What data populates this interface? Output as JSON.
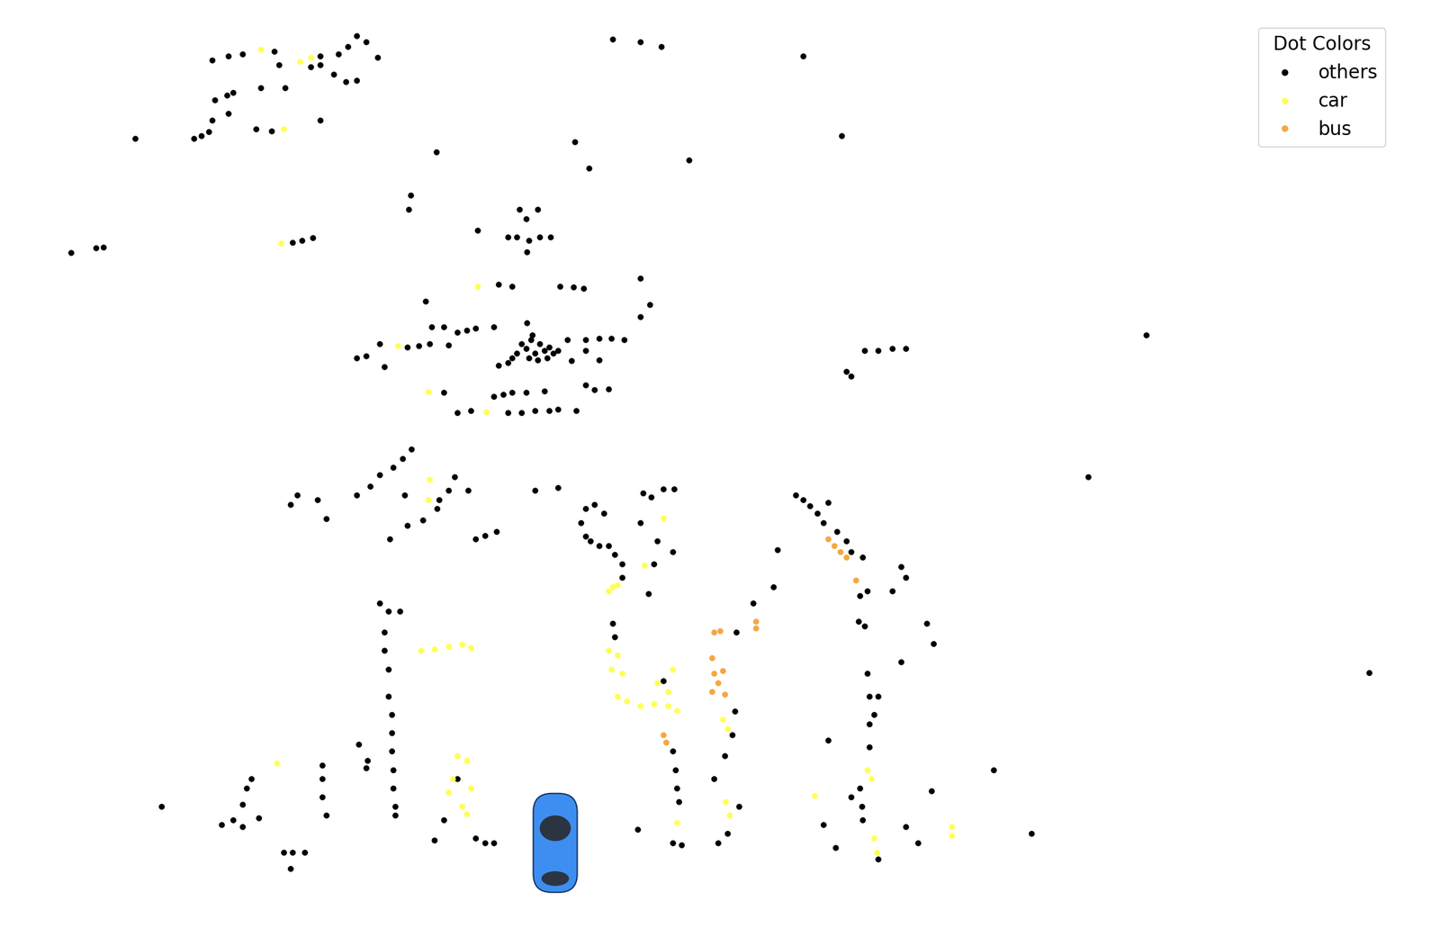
{
  "chart_data": {
    "type": "scatter",
    "legend_title": "Dot Colors",
    "legend": "upper right",
    "tick_labels": false,
    "grid": false,
    "series": [
      {
        "name": "others",
        "color": "#000000",
        "marker": "o",
        "x": [
          -37.5,
          -35.7,
          -34.2,
          -30.7,
          -25.7,
          -23.7,
          -21.7,
          -20.7,
          -19.4,
          -22.7,
          -26.7,
          -25.7,
          -24.2,
          -22.9,
          -21.7,
          -30.2,
          -29.5,
          -32.2,
          -35.2,
          -35.9,
          -37.2,
          -37.5,
          -35.7,
          -32.7,
          -31.0,
          -39.5,
          -38.7,
          -37.9,
          -25.7,
          -45.9,
          6.3,
          9.3,
          11.6,
          27.1,
          31.3,
          14.6,
          2.1,
          3.7,
          -13.0,
          -15.8,
          -16.0,
          -52.9,
          -50.2,
          -49.4,
          -28.7,
          -27.7,
          -26.5,
          -3.9,
          -1.9,
          -3.2,
          -5.2,
          -4.2,
          -2.9,
          -1.7,
          -0.5,
          -3.1,
          -8.5,
          -6.2,
          -4.7,
          0.5,
          2.0,
          3.1,
          9.3,
          10.3,
          9.3,
          -14.2,
          -3.7,
          -3.2,
          -2.7,
          -2.2,
          -1.7,
          -1.2,
          -0.7,
          -0.2,
          -4.2,
          -2.9,
          -1.9,
          -0.9,
          0.3,
          -2.5,
          -4.7,
          -5.2,
          -6.2,
          -3.1,
          -10.7,
          -9.7,
          -8.7,
          -6.7,
          -13.5,
          -12.2,
          1.3,
          3.3,
          4.8,
          6.1,
          7.5,
          3.3,
          1.8,
          4.8,
          -21.7,
          -20.7,
          -19.2,
          -16.2,
          -14.9,
          -13.7,
          -11.7,
          -18.7,
          -6.7,
          -5.7,
          -4.7,
          -3.2,
          -1.2,
          3.3,
          4.3,
          5.8,
          -12.2,
          -10.7,
          -9.2,
          -5.2,
          -3.7,
          -2.2,
          -0.7,
          0.3,
          2.3,
          33.8,
          35.3,
          36.8,
          38.3,
          31.8,
          32.3,
          64.6,
          58.2,
          88.9,
          52.0,
          47.9,
          -15.7,
          -16.7,
          -17.7,
          -19.2,
          -20.2,
          -21.7,
          -28.2,
          -28.9,
          -26.0,
          -25.0,
          -16.5,
          -12.7,
          -11.7,
          -9.5,
          -11.0,
          -18.1,
          -16.2,
          -14.5,
          -12.9,
          -8.7,
          -7.7,
          -6.4,
          -2.2,
          0.3,
          3.3,
          4.3,
          5.3,
          2.8,
          3.8,
          4.8,
          5.8,
          6.5,
          7.3,
          3.3,
          9.6,
          10.5,
          11.8,
          13.0,
          9.3,
          11.1,
          12.8,
          10.8,
          10.2,
          7.3,
          26.3,
          27.1,
          27.8,
          28.6,
          29.3,
          29.8,
          30.8,
          31.8,
          32.3,
          33.6,
          33.3,
          34.1,
          37.8,
          38.3,
          36.8,
          24.3,
          23.8,
          21.6,
          19.8,
          33.1,
          33.8,
          40.6,
          41.3,
          37.8,
          -18.7,
          -18.7,
          -18.2,
          -18.2,
          -17.9,
          -17.9,
          -17.9,
          -17.7,
          -17.7,
          -17.5,
          -17.5,
          -19.2,
          -18.2,
          -17.0,
          -25.5,
          -25.5,
          -25.5,
          -25.0,
          -21.5,
          -20.5,
          -20.7,
          -33.2,
          -33.7,
          -34.2,
          -32.4,
          -35.2,
          -34.2,
          -36.5,
          -43.0,
          -29.7,
          -28.7,
          -27.4,
          -28.9,
          -13.2,
          -12.2,
          -10.7,
          -8.7,
          -7.7,
          -6.7,
          12.8,
          13.1,
          13.3,
          13.5,
          12.8,
          13.8,
          9.0,
          11.8,
          6.3,
          6.5,
          17.8,
          18.8,
          17.3,
          18.5,
          19.3,
          19.6,
          20.1,
          29.8,
          34.1,
          34.3,
          34.8,
          35.3,
          34.3,
          34.3,
          33.3,
          33.5,
          33.6,
          32.3,
          29.3,
          30.6,
          38.3,
          39.6,
          41.1,
          35.3
        ],
        "y": [
          85.5,
          86.0,
          86.2,
          86.5,
          86.0,
          86.2,
          88.2,
          87.5,
          85.8,
          87.0,
          84.8,
          85.0,
          84.0,
          83.2,
          83.3,
          85.0,
          82.5,
          82.5,
          82.0,
          81.7,
          81.2,
          79.0,
          79.7,
          78.0,
          77.8,
          77.0,
          77.3,
          77.7,
          79.0,
          77.0,
          87.8,
          87.5,
          87.0,
          86.0,
          77.3,
          74.6,
          76.6,
          73.7,
          75.5,
          70.8,
          69.2,
          64.5,
          65.0,
          65.1,
          65.6,
          65.8,
          66.1,
          69.2,
          69.2,
          68.2,
          66.2,
          66.2,
          65.8,
          66.2,
          66.2,
          64.6,
          66.9,
          61.0,
          60.8,
          60.8,
          60.7,
          60.6,
          61.7,
          58.8,
          57.5,
          59.2,
          54.5,
          54.0,
          55.0,
          53.5,
          54.5,
          53.8,
          54.2,
          53.5,
          53.5,
          53.0,
          52.8,
          53.0,
          53.8,
          55.5,
          53.0,
          52.5,
          52.2,
          56.8,
          55.8,
          56.0,
          56.2,
          56.4,
          56.4,
          56.4,
          55.0,
          55.0,
          55.1,
          55.1,
          55.0,
          53.8,
          52.7,
          52.8,
          53.0,
          53.2,
          54.5,
          54.2,
          54.3,
          54.5,
          54.4,
          52.0,
          48.8,
          49.0,
          49.2,
          49.2,
          49.4,
          50.0,
          49.5,
          49.6,
          49.2,
          47.0,
          47.2,
          47.0,
          47.0,
          47.2,
          47.2,
          47.4,
          47.2,
          53.8,
          53.8,
          54.0,
          54.0,
          51.5,
          51.0,
          55.5,
          40.0,
          18.6,
          1.0,
          8.0,
          43.0,
          42.0,
          41.0,
          40.2,
          39.0,
          38.0,
          38.0,
          37.0,
          37.5,
          35.4,
          38.0,
          37.5,
          38.5,
          38.5,
          40.0,
          33.2,
          34.7,
          35.3,
          36.5,
          33.2,
          33.6,
          34.0,
          38.5,
          38.8,
          36.5,
          37.0,
          36.0,
          35.0,
          33.0,
          32.5,
          32.5,
          31.5,
          30.5,
          33.5,
          38.2,
          37.8,
          38.7,
          38.7,
          35.0,
          33.0,
          31.8,
          30.5,
          27.2,
          29.0,
          38.0,
          37.5,
          36.8,
          36.0,
          35.0,
          37.2,
          34.0,
          33.0,
          31.8,
          31.2,
          27.0,
          27.5,
          30.2,
          29.0,
          27.5,
          32.0,
          28.0,
          26.2,
          23.0,
          24.2,
          23.7,
          24.0,
          21.8,
          19.8,
          23.0,
          21.0,
          19.0,
          16.0,
          14.0,
          12.0,
          10.0,
          8.0,
          6.0,
          4.0,
          3.0,
          26.2,
          25.3,
          25.3,
          8.5,
          7.0,
          5.0,
          3.0,
          10.8,
          9.0,
          8.2,
          7.0,
          6.0,
          4.2,
          2.7,
          2.5,
          1.8,
          2.0,
          4.0,
          -1.0,
          -1.0,
          -1.0,
          -2.8,
          0.3,
          2.5,
          7.0,
          0.5,
          0.0,
          0.0,
          10.0,
          8.0,
          6.0,
          4.5,
          0.0,
          -0.2,
          1.5,
          17.7,
          24.0,
          22.5,
          0.0,
          1.0,
          7.0,
          9.5,
          11.8,
          14.4,
          4.0,
          11.2,
          18.5,
          16.0,
          14.0,
          16.0,
          13.0,
          10.5,
          6.0,
          4.0,
          2.5,
          5.0,
          2.0,
          -0.5,
          1.8,
          0.0,
          5.7,
          -1.8
        ]
      },
      {
        "name": "car",
        "color": "#ffff55",
        "marker": "o",
        "x": [
          -32.2,
          -27.9,
          -26.7,
          -29.7,
          -30.0,
          -8.5,
          -17.2,
          -13.9,
          -7.5,
          -13.7,
          -13.9,
          11.8,
          9.7,
          6.3,
          5.8,
          6.8,
          -14.7,
          -13.2,
          -11.7,
          -10.2,
          -9.2,
          5.8,
          6.8,
          6.1,
          7.3,
          6.8,
          7.8,
          9.3,
          10.8,
          12.3,
          12.8,
          11.1,
          12.3,
          13.3,
          -10.7,
          -9.7,
          -11.2,
          -9.2,
          -11.7,
          -10.2,
          -9.7,
          -30.4,
          18.3,
          18.8,
          18.6,
          19.0,
          28.3,
          34.1,
          34.5,
          34.8,
          35.1,
          43.3,
          43.3,
          13.3
        ],
        "y": [
          86.7,
          85.4,
          85.8,
          78.0,
          65.5,
          60.8,
          54.3,
          49.3,
          47.1,
          39.7,
          37.5,
          35.5,
          30.3,
          28.0,
          27.5,
          28.2,
          21.0,
          21.2,
          21.5,
          21.7,
          21.3,
          21.0,
          20.5,
          19.0,
          18.5,
          16.0,
          15.5,
          15.0,
          15.2,
          15.0,
          19.0,
          17.5,
          16.5,
          14.5,
          9.5,
          9.0,
          7.0,
          6.0,
          5.5,
          4.0,
          3.2,
          8.7,
          13.5,
          12.5,
          4.5,
          3.0,
          5.2,
          8.0,
          7.0,
          0.5,
          -1.0,
          1.8,
          0.8,
          2.2
        ]
      },
      {
        "name": "bus",
        "color": "#f5a742",
        "marker": "o",
        "x": [
          29.8,
          30.5,
          31.1,
          31.8,
          32.8,
          21.9,
          21.9,
          17.3,
          18.0,
          17.1,
          17.3,
          17.8,
          18.3,
          17.1,
          18.5,
          11.8,
          12.1
        ],
        "y": [
          33.2,
          32.5,
          31.8,
          31.2,
          28.7,
          24.2,
          23.5,
          23.0,
          23.2,
          20.2,
          18.5,
          17.5,
          18.8,
          16.5,
          16.2,
          11.8,
          11.0
        ]
      }
    ]
  }
}
